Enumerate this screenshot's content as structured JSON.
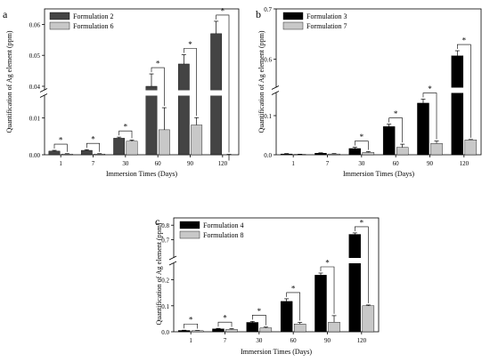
{
  "chart_data": [
    {
      "type": "bar",
      "panel_label": "a",
      "title": "",
      "xlabel": "Immersion Times (Days)",
      "ylabel": "Quantification of Ag element (ppm)",
      "categories": [
        "1",
        "7",
        "30",
        "60",
        "90",
        "120"
      ],
      "axis_break": true,
      "ylim_lower": [
        0,
        0.015
      ],
      "ylim_upper": [
        0.04,
        0.065
      ],
      "y_ticks_lower": [
        "0.00",
        "0.01"
      ],
      "y_ticks_upper": [
        "0.04",
        "0.05",
        "0.06"
      ],
      "legend_position": "top-left",
      "series": [
        {
          "name": "Formulation 2",
          "color": "#444444",
          "values": [
            0.001,
            0.0012,
            0.0045,
            0.04,
            0.0472,
            0.057
          ],
          "errors": [
            0.0002,
            0.0002,
            0.0003,
            0.004,
            0.003,
            0.004
          ]
        },
        {
          "name": "Formulation 6",
          "color": "#c8c8c8",
          "values": [
            0.0002,
            0.0002,
            0.0037,
            0.0068,
            0.0081,
            0.016
          ],
          "errors": [
            0.0001,
            0.0001,
            0.0003,
            0.006,
            0.002,
            0.002
          ]
        }
      ],
      "significance": [
        "*",
        "*",
        "*",
        "*",
        "*",
        "*"
      ]
    },
    {
      "type": "bar",
      "panel_label": "b",
      "title": "",
      "xlabel": "Immersion Times (Days)",
      "ylabel": "Quantification of Ag element (ppm)",
      "categories": [
        "1",
        "7",
        "30",
        "60",
        "90",
        "120"
      ],
      "axis_break": true,
      "ylim_lower": [
        0,
        0.15
      ],
      "ylim_upper": [
        0.55,
        0.7
      ],
      "y_ticks_lower": [
        "0.0",
        "0.1"
      ],
      "y_ticks_upper": [
        "0.6",
        "0.7"
      ],
      "legend_position": "top-left",
      "series": [
        {
          "name": "Formulation 3",
          "color": "#000000",
          "values": [
            0.002,
            0.004,
            0.016,
            0.072,
            0.132,
            0.607
          ],
          "errors": [
            0.001,
            0.001,
            0.003,
            0.006,
            0.01,
            0.01
          ]
        },
        {
          "name": "Formulation 7",
          "color": "#c8c8c8",
          "values": [
            0.001,
            0.002,
            0.006,
            0.019,
            0.029,
            0.038
          ],
          "errors": [
            0.0005,
            0.001,
            0.002,
            0.008,
            0.006,
            0.001
          ]
        }
      ],
      "significance": [
        "",
        "",
        "*",
        "*",
        "*",
        "*"
      ]
    },
    {
      "type": "bar",
      "panel_label": "c",
      "title": "",
      "xlabel": "Immersion Times (Days)",
      "ylabel": "Quantification of Ag element (ppm)",
      "categories": [
        "1",
        "7",
        "30",
        "60",
        "90",
        "120"
      ],
      "axis_break": true,
      "ylim_lower": [
        0,
        0.25
      ],
      "ylim_upper": [
        0.6,
        0.85
      ],
      "y_ticks_lower": [
        "0.0",
        "0.1",
        "0.2"
      ],
      "y_ticks_upper": [
        "0.7",
        "0.8"
      ],
      "legend_position": "top-left",
      "series": [
        {
          "name": "Formulation 4",
          "color": "#000000",
          "values": [
            0.005,
            0.011,
            0.036,
            0.117,
            0.218,
            0.737
          ],
          "errors": [
            0.001,
            0.002,
            0.004,
            0.01,
            0.008,
            0.01
          ]
        },
        {
          "name": "Formulation 8",
          "color": "#c8c8c8",
          "values": [
            0.004,
            0.009,
            0.015,
            0.03,
            0.037,
            0.1
          ],
          "errors": [
            0.001,
            0.003,
            0.003,
            0.006,
            0.025,
            0.003
          ]
        }
      ],
      "significance": [
        "*",
        "*",
        "*",
        "*",
        "*",
        "*"
      ]
    }
  ]
}
